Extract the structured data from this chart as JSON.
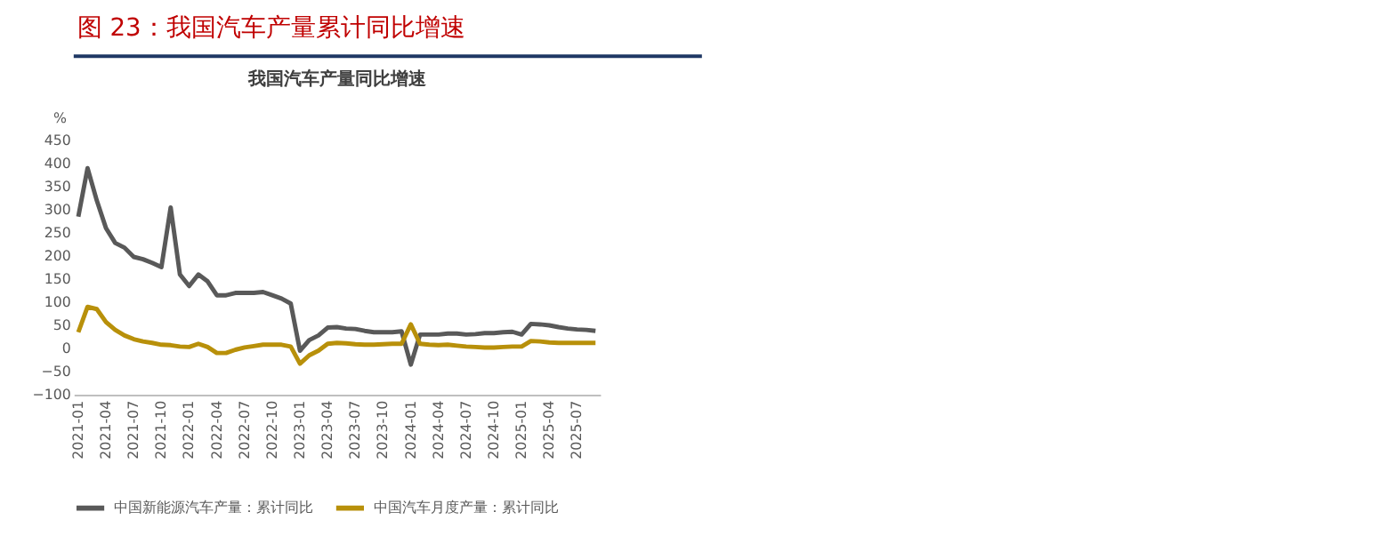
{
  "chart_data": {
    "type": "line",
    "title": "图 23：我国汽车产量累计同比增速",
    "subtitle": "我国汽车产量同比增速",
    "ylabel": "%",
    "categories": [
      "2021-01",
      null,
      null,
      "2021-04",
      null,
      null,
      "2021-07",
      null,
      null,
      "2021-10",
      null,
      null,
      "2022-01",
      null,
      null,
      "2022-04",
      null,
      null,
      "2022-07",
      null,
      null,
      "2022-10",
      null,
      null,
      "2023-01",
      null,
      null,
      "2023-04",
      null,
      null,
      "2023-07",
      null,
      null,
      "2023-10",
      null,
      null,
      "2024-01",
      null,
      null,
      "2024-04",
      null,
      null,
      "2024-07",
      null,
      null,
      "2024-10",
      null,
      null,
      "2025-01",
      null,
      null,
      "2025-04",
      null,
      null,
      "2025-07",
      null,
      null
    ],
    "series": [
      {
        "name": "中国新能源汽车产量：累计同比",
        "color": "#595959",
        "values": [
          285,
          390,
          320,
          260,
          228,
          218,
          198,
          193,
          185,
          176,
          305,
          160,
          135,
          160,
          145,
          115,
          115,
          120,
          120,
          120,
          122,
          115,
          108,
          97,
          -5,
          18,
          28,
          45,
          46,
          43,
          42,
          38,
          35,
          35,
          35,
          37,
          -35,
          30,
          30,
          30,
          32,
          32,
          30,
          31,
          33,
          33,
          35,
          36,
          30,
          53,
          52,
          50,
          46,
          43,
          41,
          40,
          38
        ]
      },
      {
        "name": "中国汽车月度产量：累计同比",
        "color": "#b8900a",
        "values": [
          35,
          90,
          85,
          57,
          40,
          28,
          20,
          15,
          12,
          8,
          7,
          4,
          3,
          10,
          3,
          -10,
          -10,
          -3,
          2,
          5,
          8,
          8,
          8,
          4,
          -33,
          -15,
          -5,
          10,
          12,
          11,
          9,
          8,
          8,
          9,
          10,
          10,
          52,
          10,
          8,
          7,
          8,
          6,
          4,
          3,
          2,
          2,
          3,
          4,
          4,
          16,
          15,
          13,
          12,
          12,
          12,
          12,
          12
        ]
      }
    ],
    "ylim": [
      -100,
      450
    ],
    "yticks": [
      -100,
      -50,
      0,
      50,
      100,
      150,
      200,
      250,
      300,
      350,
      400,
      450
    ],
    "grid": false,
    "legend": "bottom",
    "marker": "none",
    "line_style": "solid"
  }
}
